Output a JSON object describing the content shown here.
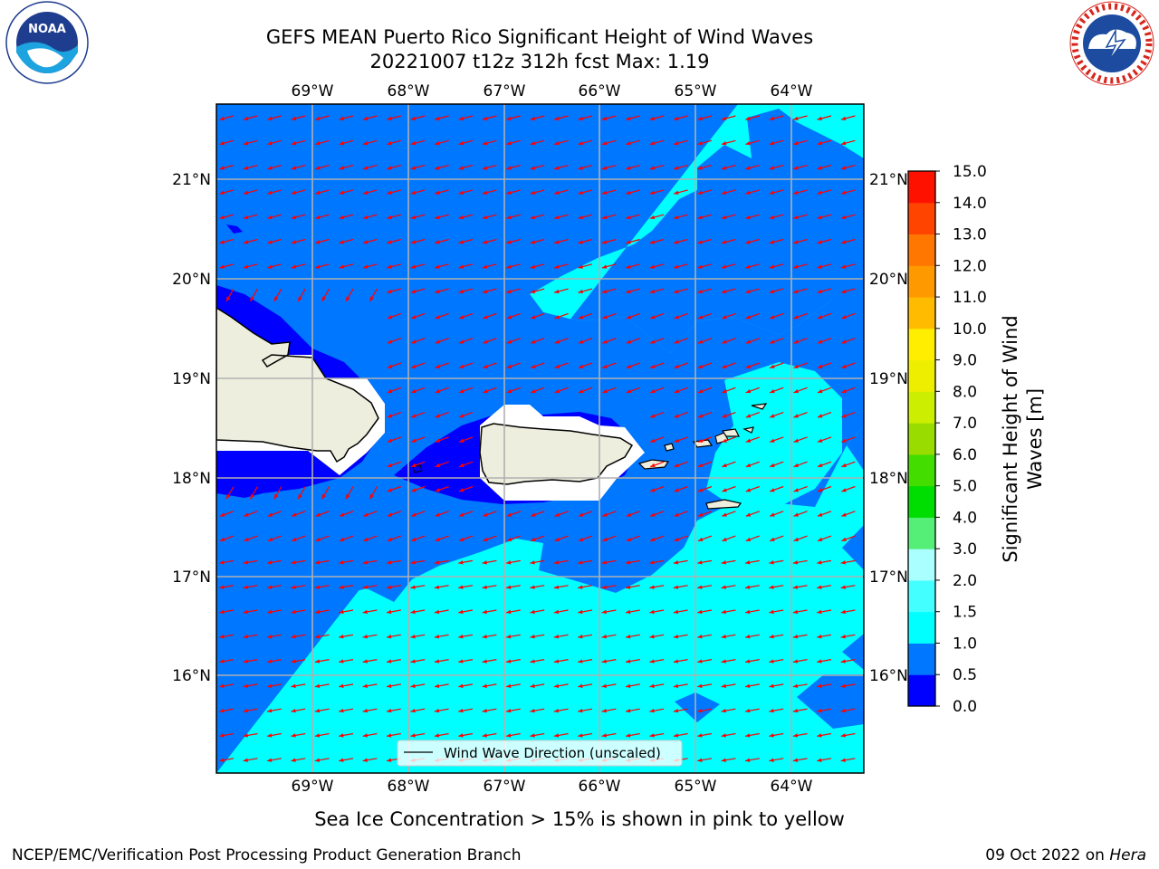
{
  "title": {
    "line1": "GEFS MEAN Puerto Rico Significant Height of Wind Waves",
    "line2": "20221007 t12z 312h fcst   Max: 1.19"
  },
  "logos": {
    "left": "NOAA",
    "left_ring_text": "NATIONAL OCEANIC AND ATMOSPHERIC ADMINISTRATION · U.S. DEPARTMENT OF COMMERCE",
    "right_ring_text": "NATIONAL WEATHER SERVICE"
  },
  "map": {
    "lon_labels": [
      "69°W",
      "68°W",
      "67°W",
      "66°W",
      "65°W",
      "64°W"
    ],
    "lat_labels": [
      "21°N",
      "20°N",
      "19°N",
      "18°N",
      "17°N",
      "16°N"
    ],
    "legend_label": "Wind Wave Direction (unscaled)",
    "land_color": "#eeeede",
    "field_colors": {
      "lt_0_5": "#0000ff",
      "0_5_to_1": "#0077ff",
      "1_to_1_5": "#00ffff"
    },
    "arrow_color": "#ff0000"
  },
  "colorbar": {
    "label_line1": "Significant Height of Wind",
    "label_line2": "Waves [m]",
    "ticks": [
      "0.0",
      "0.5",
      "1.0",
      "1.5",
      "2.0",
      "3.0",
      "4.0",
      "5.0",
      "6.0",
      "7.0",
      "8.0",
      "9.0",
      "10.0",
      "11.0",
      "12.0",
      "13.0",
      "14.0",
      "15.0"
    ],
    "colors": [
      "#0000ff",
      "#0077ff",
      "#00ffff",
      "#44ffff",
      "#aaffff",
      "#55ee77",
      "#00dd00",
      "#44dd00",
      "#99dd00",
      "#ccee00",
      "#eeee00",
      "#ffee00",
      "#ffbb00",
      "#ff9900",
      "#ff7700",
      "#ff4400",
      "#ff1100"
    ]
  },
  "footer": {
    "note": "Sea Ice Concentration > 15% is shown in pink to yellow",
    "left": "NCEP/EMC/Verification Post Processing Product Generation Branch",
    "right_prefix": "09 Oct 2022 on ",
    "right_host": "Hera"
  }
}
